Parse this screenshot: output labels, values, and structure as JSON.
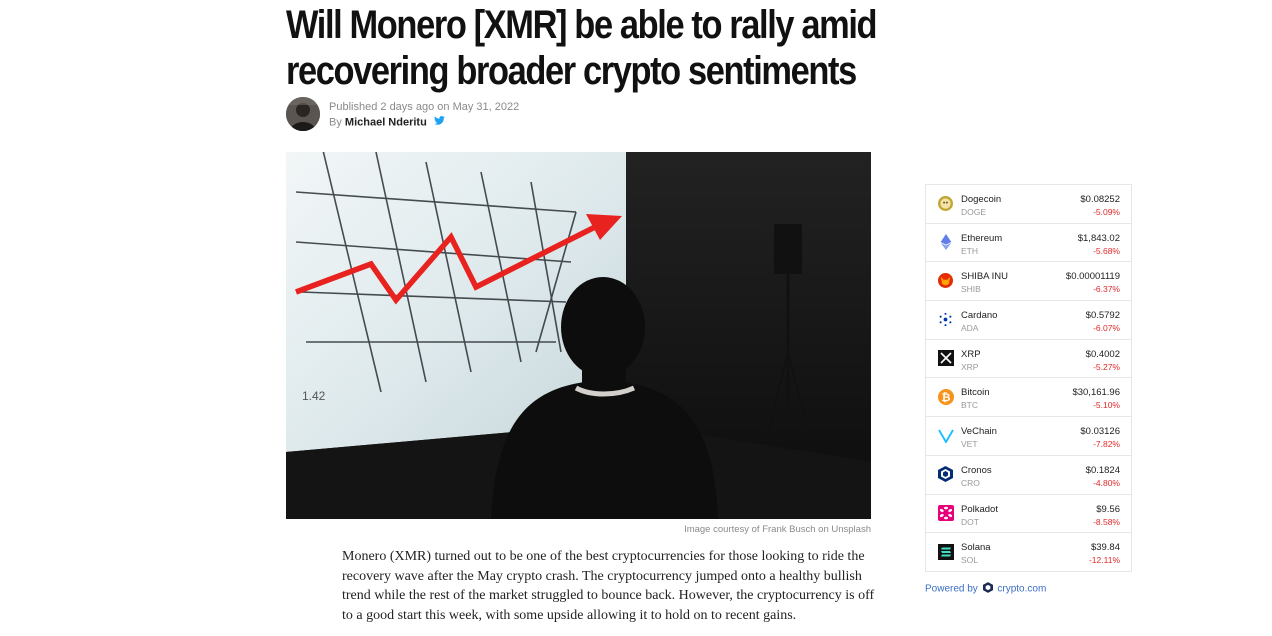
{
  "article": {
    "title_line1": "Will Monero [XMR] be able to rally amid",
    "title_line2": "recovering broader crypto sentiments",
    "published_prefix": "Published",
    "published_relative": "2 days ago",
    "published_on": "on",
    "published_date": "May 31, 2022",
    "by_label": "By",
    "author": "Michael Nderitu",
    "image_caption": "Image courtesy of Frank Busch on Unsplash",
    "body": "Monero (XMR) turned out to be one of the best cryptocurrencies for those looking to ride the recovery wave after the May crypto crash. The cryptocurrency jumped onto a healthy bullish trend while the rest of the market struggled to bounce back. However, the cryptocurrency is off to a good start this week, with some upside allowing it to hold on to recent gains."
  },
  "ticker": {
    "coins": [
      {
        "name": "Dogecoin",
        "symbol": "DOGE",
        "price": "$0.08252",
        "change": "-5.09%",
        "icon": "dogecoin-icon",
        "color": "#c2a633"
      },
      {
        "name": "Ethereum",
        "symbol": "ETH",
        "price": "$1,843.02",
        "change": "-5.68%",
        "icon": "ethereum-icon",
        "color": "#627eea"
      },
      {
        "name": "SHIBA INU",
        "symbol": "SHIB",
        "price": "$0.00001119",
        "change": "-6.37%",
        "icon": "shiba-inu-icon",
        "color": "#e42d04"
      },
      {
        "name": "Cardano",
        "symbol": "ADA",
        "price": "$0.5792",
        "change": "-6.07%",
        "icon": "cardano-icon",
        "color": "#0033ad"
      },
      {
        "name": "XRP",
        "symbol": "XRP",
        "price": "$0.4002",
        "change": "-5.27%",
        "icon": "xrp-icon",
        "color": "#111111"
      },
      {
        "name": "Bitcoin",
        "symbol": "BTC",
        "price": "$30,161.96",
        "change": "-5.10%",
        "icon": "bitcoin-icon",
        "color": "#f7931a"
      },
      {
        "name": "VeChain",
        "symbol": "VET",
        "price": "$0.03126",
        "change": "-7.82%",
        "icon": "vechain-icon",
        "color": "#15bdff"
      },
      {
        "name": "Cronos",
        "symbol": "CRO",
        "price": "$0.1824",
        "change": "-4.80%",
        "icon": "cronos-icon",
        "color": "#002d74"
      },
      {
        "name": "Polkadot",
        "symbol": "DOT",
        "price": "$9.56",
        "change": "-8.58%",
        "icon": "polkadot-icon",
        "color": "#e6007a"
      },
      {
        "name": "Solana",
        "symbol": "SOL",
        "price": "$39.84",
        "change": "-12.11%",
        "icon": "solana-icon",
        "color": "#111111"
      }
    ],
    "powered_prefix": "Powered by",
    "powered_brand": "crypto.com",
    "change_color": "#e02a2a",
    "link_color": "#3a6ec4"
  }
}
